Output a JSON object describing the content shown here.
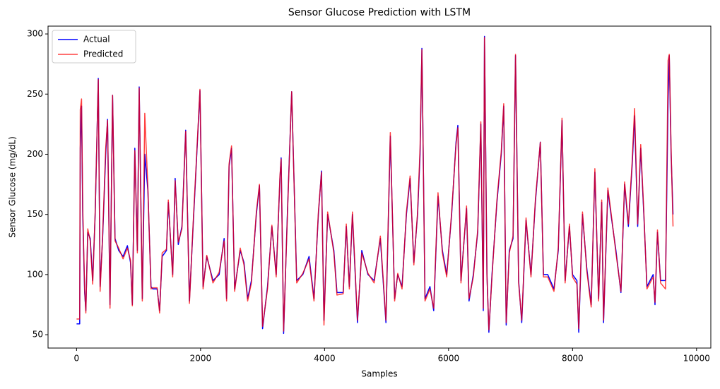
{
  "chart_data": {
    "type": "line",
    "title": "Sensor Glucose Prediction with LSTM",
    "x_label": "Samples",
    "y_label": "Sensor Glucose (mg/dL)",
    "x": [
      0,
      50,
      60,
      80,
      100,
      130,
      150,
      180,
      220,
      260,
      300,
      350,
      380,
      420,
      470,
      500,
      540,
      580,
      620,
      680,
      750,
      820,
      870,
      900,
      940,
      980,
      1010,
      1060,
      1100,
      1150,
      1200,
      1230,
      1300,
      1340,
      1380,
      1450,
      1480,
      1550,
      1590,
      1640,
      1700,
      1760,
      1820,
      1880,
      1920,
      1990,
      2040,
      2100,
      2200,
      2300,
      2380,
      2420,
      2460,
      2500,
      2550,
      2640,
      2700,
      2760,
      2820,
      2900,
      2950,
      3000,
      3080,
      3150,
      3220,
      3280,
      3300,
      3340,
      3400,
      3470,
      3550,
      3650,
      3750,
      3830,
      3900,
      3950,
      3990,
      4050,
      4150,
      4200,
      4300,
      4350,
      4400,
      4450,
      4530,
      4600,
      4700,
      4800,
      4900,
      4990,
      5060,
      5130,
      5180,
      5250,
      5320,
      5380,
      5440,
      5500,
      5540,
      5570,
      5620,
      5700,
      5760,
      5830,
      5900,
      5970,
      6050,
      6120,
      6150,
      6200,
      6290,
      6330,
      6400,
      6470,
      6520,
      6560,
      6580,
      6620,
      6650,
      6700,
      6780,
      6850,
      6890,
      6930,
      6980,
      7040,
      7080,
      7130,
      7180,
      7250,
      7330,
      7400,
      7480,
      7530,
      7600,
      7700,
      7770,
      7830,
      7880,
      7950,
      8000,
      8070,
      8100,
      8160,
      8230,
      8300,
      8360,
      8420,
      8470,
      8500,
      8570,
      8620,
      8700,
      8780,
      8840,
      8900,
      8960,
      9000,
      9050,
      9100,
      9150,
      9200,
      9300,
      9330,
      9370,
      9420,
      9500,
      9540,
      9560,
      9590,
      9620
    ],
    "series": [
      {
        "name": "Actual",
        "color": "#0000ff",
        "values": [
          59,
          59,
          205,
          240,
          150,
          85,
          70,
          135,
          130,
          95,
          150,
          263,
          90,
          130,
          200,
          229,
          75,
          249,
          130,
          120,
          115,
          124,
          110,
          75,
          205,
          120,
          256,
          80,
          200,
          170,
          90,
          88,
          88,
          70,
          115,
          120,
          160,
          100,
          180,
          125,
          140,
          220,
          78,
          140,
          180,
          253,
          90,
          115,
          95,
          100,
          130,
          80,
          190,
          205,
          88,
          120,
          110,
          80,
          95,
          150,
          174,
          55,
          90,
          140,
          100,
          180,
          197,
          51,
          150,
          252,
          95,
          100,
          115,
          80,
          150,
          186,
          62,
          150,
          120,
          85,
          85,
          140,
          90,
          150,
          60,
          120,
          100,
          95,
          130,
          60,
          215,
          80,
          100,
          90,
          150,
          180,
          110,
          150,
          200,
          288,
          80,
          90,
          70,
          165,
          120,
          100,
          150,
          210,
          224,
          95,
          155,
          78,
          100,
          135,
          225,
          70,
          298,
          100,
          52,
          100,
          160,
          200,
          240,
          58,
          120,
          130,
          282,
          95,
          60,
          145,
          100,
          160,
          210,
          100,
          100,
          88,
          120,
          228,
          95,
          140,
          100,
          95,
          52,
          150,
          105,
          75,
          185,
          80,
          160,
          60,
          170,
          150,
          120,
          85,
          175,
          140,
          190,
          232,
          140,
          205,
          150,
          90,
          100,
          75,
          135,
          95,
          95,
          245,
          282,
          200,
          150
        ]
      },
      {
        "name": "Predicted",
        "color": "#ff0000",
        "opacity": 0.75,
        "values": [
          63,
          63,
          237,
          246,
          155,
          88,
          68,
          138,
          128,
          92,
          152,
          262,
          86,
          132,
          205,
          228,
          72,
          249,
          128,
          122,
          113,
          122,
          112,
          74,
          203,
          118,
          255,
          78,
          234,
          172,
          88,
          89,
          89,
          68,
          118,
          121,
          162,
          98,
          178,
          127,
          138,
          219,
          76,
          142,
          182,
          254,
          88,
          116,
          93,
          102,
          128,
          78,
          192,
          207,
          86,
          122,
          108,
          78,
          93,
          152,
          175,
          57,
          88,
          141,
          98,
          182,
          196,
          53,
          148,
          252,
          93,
          101,
          113,
          78,
          152,
          185,
          58,
          152,
          118,
          83,
          84,
          142,
          88,
          152,
          62,
          118,
          101,
          93,
          132,
          62,
          218,
          78,
          101,
          88,
          152,
          182,
          108,
          152,
          205,
          287,
          78,
          88,
          72,
          168,
          118,
          98,
          152,
          208,
          222,
          93,
          157,
          80,
          98,
          137,
          227,
          72,
          297,
          98,
          54,
          98,
          162,
          202,
          242,
          60,
          118,
          132,
          283,
          93,
          62,
          147,
          98,
          162,
          210,
          98,
          98,
          86,
          122,
          230,
          93,
          142,
          98,
          92,
          55,
          152,
          103,
          73,
          188,
          78,
          162,
          62,
          172,
          152,
          118,
          86,
          177,
          142,
          193,
          238,
          142,
          208,
          152,
          88,
          98,
          77,
          137,
          93,
          88,
          278,
          283,
          205,
          140
        ]
      }
    ],
    "xlim": [
      -460,
      10230
    ],
    "ylim": [
      38.9,
      306.5
    ],
    "xticks": [
      0,
      2000,
      4000,
      6000,
      8000,
      10000
    ],
    "yticks": [
      50,
      100,
      150,
      200,
      250,
      300
    ],
    "legend": "upper-left"
  }
}
